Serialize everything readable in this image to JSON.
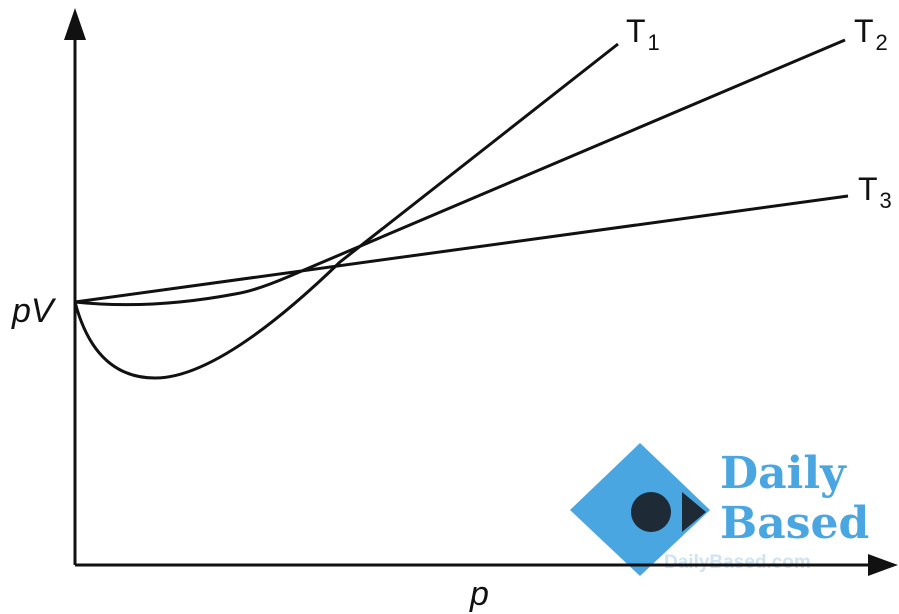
{
  "diagram": {
    "x_axis_label": "p",
    "y_axis_label": "pV",
    "curves": [
      {
        "name": "T",
        "subscript": "1"
      },
      {
        "name": "T",
        "subscript": "2"
      },
      {
        "name": "T",
        "subscript": "3"
      }
    ]
  },
  "watermark": {
    "line1": "Daily",
    "line2": "Based",
    "url": "DailyBased.com",
    "colors": {
      "logo_blue": "#4aa6e0",
      "logo_dark": "#1e2a36",
      "url_text": "#cfe3f3"
    }
  },
  "colors": {
    "ink": "#111111",
    "background": "#ffffff"
  }
}
